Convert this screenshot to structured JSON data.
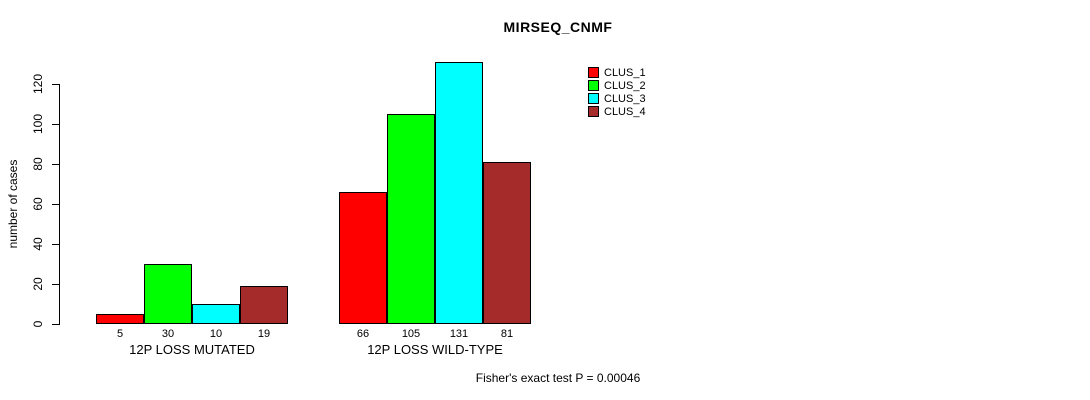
{
  "chart_data": {
    "type": "bar",
    "title": "MIRSEQ_CNMF",
    "ylabel": "number of cases",
    "yticks": [
      0,
      20,
      40,
      60,
      80,
      100,
      120
    ],
    "ylim": [
      0,
      131
    ],
    "grid": false,
    "legend_position": "top-right",
    "categories": [
      "12P LOSS MUTATED",
      "12P LOSS WILD-TYPE"
    ],
    "series": [
      {
        "name": "CLUS_1",
        "color": "#FF0000",
        "values": [
          5,
          66
        ]
      },
      {
        "name": "CLUS_2",
        "color": "#00FF00",
        "values": [
          30,
          105
        ]
      },
      {
        "name": "CLUS_3",
        "color": "#00FFFF",
        "values": [
          10,
          131
        ]
      },
      {
        "name": "CLUS_4",
        "color": "#A52A2A",
        "values": [
          19,
          81
        ]
      }
    ],
    "bar_labels": [
      [
        "5",
        "30",
        "10",
        "19"
      ],
      [
        "66",
        "105",
        "131",
        "81"
      ]
    ],
    "annotation": "Fisher's exact test P = 0.00046"
  }
}
